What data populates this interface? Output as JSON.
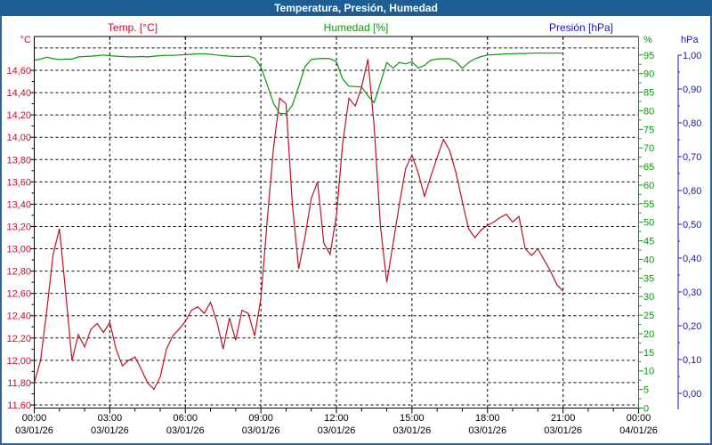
{
  "window": {
    "title": "Temperatura, Presión, Humedad"
  },
  "legend": [
    {
      "label": "Temp. [°C]",
      "color": "#cf0a2c"
    },
    {
      "label": "Humedad [%]",
      "color": "#0a990a"
    },
    {
      "label": "Presión [hPa]",
      "color": "#1414cc"
    }
  ],
  "chart_data": {
    "type": "line",
    "title": "Temperatura, Presión, Humedad",
    "grid": true,
    "x_range_hours": [
      0,
      24
    ],
    "x_start": 0,
    "x_step": 0.25,
    "x_tick_hours": [
      0,
      3,
      6,
      9,
      12,
      15,
      18,
      21,
      24
    ],
    "x_tick_times": [
      "00:00",
      "03:00",
      "06:00",
      "09:00",
      "12:00",
      "15:00",
      "18:00",
      "21:00",
      "00:00"
    ],
    "x_tick_dates": [
      "03/01/26",
      "03/01/26",
      "03/01/26",
      "03/01/26",
      "03/01/26",
      "03/01/26",
      "03/01/26",
      "03/01/26",
      "04/01/26"
    ],
    "axes": {
      "temp": {
        "unit": "°C",
        "color": "#cf0a2c",
        "side": "left",
        "min": 11.6,
        "max": 14.6,
        "tick_step": 0.2,
        "ticks": [
          "14,60",
          "14,40",
          "14,20",
          "14,00",
          "13,80",
          "13,60",
          "13,40",
          "13,20",
          "13,00",
          "12,80",
          "12,60",
          "12,40",
          "12,20",
          "12,00",
          "11,80",
          "11,60"
        ]
      },
      "humidity": {
        "unit": "%",
        "color": "#0a990a",
        "side": "right",
        "min": 0,
        "max": 95,
        "tick_step": 5,
        "ticks": [
          "95",
          "90",
          "85",
          "80",
          "75",
          "70",
          "65",
          "60",
          "55",
          "50",
          "45",
          "40",
          "35",
          "30",
          "25",
          "20",
          "15",
          "10",
          "5",
          "0"
        ]
      },
      "pressure": {
        "unit": "hPa",
        "color": "#1414cc",
        "side": "right-outer",
        "min": 0,
        "max": 1,
        "tick_step": 0.1,
        "ticks": [
          "1,00",
          "0,90",
          "0,80",
          "0,70",
          "0,60",
          "0,50",
          "0,40",
          "0,30",
          "0,20",
          "0,10",
          "0,00"
        ]
      }
    },
    "series": [
      {
        "name": "Temp. [°C]",
        "axis": "temp",
        "color": "#bf0f26",
        "values": [
          11.8,
          12.0,
          12.45,
          12.95,
          13.18,
          12.6,
          12.0,
          12.23,
          12.12,
          12.28,
          12.33,
          12.25,
          12.34,
          12.1,
          11.95,
          12.0,
          12.03,
          11.92,
          11.8,
          11.74,
          11.85,
          12.1,
          12.22,
          12.28,
          12.35,
          12.45,
          12.48,
          12.42,
          12.52,
          12.35,
          12.1,
          12.38,
          12.18,
          12.45,
          12.42,
          12.22,
          12.55,
          13.25,
          13.9,
          14.35,
          14.3,
          13.4,
          12.82,
          13.1,
          13.45,
          13.6,
          13.05,
          12.95,
          13.3,
          13.95,
          14.35,
          14.28,
          14.45,
          14.7,
          14.1,
          13.2,
          12.7,
          13.05,
          13.4,
          13.72,
          13.84,
          13.68,
          13.47,
          13.65,
          13.82,
          13.98,
          13.88,
          13.68,
          13.42,
          13.18,
          13.1,
          13.17,
          13.21,
          13.24,
          13.28,
          13.31,
          13.24,
          13.29,
          13.0,
          12.94,
          13.0,
          12.9,
          12.8,
          12.68,
          12.62
        ]
      },
      {
        "name": "Humedad [%]",
        "axis": "humidity",
        "color": "#0a990a",
        "values": [
          93.6,
          93.9,
          94.4,
          94.0,
          93.8,
          93.9,
          93.9,
          94.5,
          94.6,
          94.7,
          94.8,
          95.0,
          94.8,
          94.7,
          94.6,
          94.5,
          94.5,
          94.6,
          94.5,
          94.7,
          94.8,
          94.9,
          94.9,
          95.0,
          95.1,
          95.2,
          95.3,
          95.3,
          95.2,
          95.0,
          94.8,
          94.7,
          94.6,
          94.6,
          94.7,
          94.2,
          91.8,
          87.0,
          82.0,
          79.3,
          79.2,
          81.5,
          86.5,
          91.8,
          93.8,
          94.0,
          94.1,
          94.0,
          93.2,
          88.5,
          86.6,
          86.5,
          86.4,
          84.0,
          82.2,
          87.5,
          93.0,
          91.5,
          93.0,
          92.6,
          93.2,
          91.5,
          92.2,
          93.6,
          93.9,
          94.0,
          94.0,
          93.2,
          91.4,
          93.0,
          94.0,
          94.6,
          95.0,
          95.1,
          95.2,
          95.3,
          95.3,
          95.4,
          95.4,
          95.5,
          95.5,
          95.5,
          95.5,
          95.5,
          95.5
        ]
      },
      {
        "name": "Presión [hPa]",
        "axis": "pressure",
        "color": "#1414cc",
        "visible_curve": false,
        "values": []
      }
    ]
  }
}
